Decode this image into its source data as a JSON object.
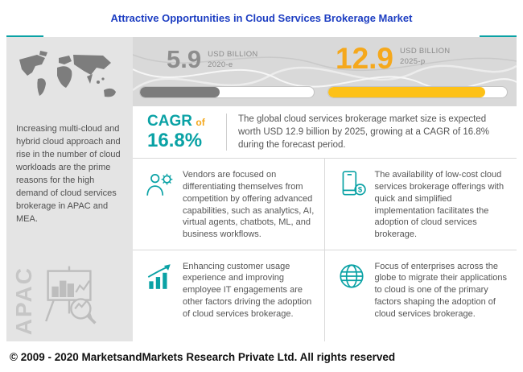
{
  "header": {
    "title": "Attractive Opportunities in Cloud Services Brokerage Market"
  },
  "sidebar": {
    "description": "Increasing multi-cloud and hybrid cloud approach and rise in the number of cloud workloads are the prime reasons for the high demand of cloud services brokerage in APAC and MEA.",
    "region_label": "APAC",
    "map_icon": "world-map",
    "bottom_icon": "analysis-easel-icon"
  },
  "stats": {
    "current": {
      "value": "5.9",
      "unit": "USD BILLION",
      "year": "2020-e",
      "bar_pct": 46
    },
    "projected": {
      "value": "12.9",
      "unit": "USD BILLION",
      "year": "2025-p",
      "bar_pct": 88
    }
  },
  "cagr": {
    "label": "CAGR",
    "of": "of",
    "value": "16.8%",
    "description": "The global cloud services brokerage market size is expected worth USD 12.9 billion by 2025, growing at a CAGR of 16.8% during the forecast period."
  },
  "insights": [
    {
      "icon": "person-gear-icon",
      "text": "Vendors are focused on differentiating themselves from competition by offering advanced capabilities, such as analytics, AI, virtual agents, chatbots, ML, and business workflows."
    },
    {
      "icon": "mobile-dollar-icon",
      "text": "The availability of low-cost cloud services brokerage offerings with quick and simplified implementation facilitates the adoption of cloud services brokerage."
    },
    {
      "icon": "growth-chart-icon",
      "text": "Enhancing customer usage experience and improving employee IT engagements are other factors driving the adoption of cloud services brokerage."
    },
    {
      "icon": "globe-icon",
      "text": "Focus of enterprises across the globe to migrate their applications to cloud is one of the primary factors shaping the adoption of cloud services brokerage."
    }
  ],
  "footer": {
    "copyright": "© 2009 - 2020 MarketsandMarkets Research Private Ltd. All rights reserved"
  },
  "colors": {
    "title_blue": "#1d3ec2",
    "accent_teal": "#0aa2a5",
    "accent_orange": "#f5a81c",
    "bar_yellow": "#fdc117",
    "number_gray": "#8d8d8d"
  },
  "chart_data": {
    "type": "bar",
    "title": "Attractive Opportunities in Cloud Services Brokerage Market",
    "categories": [
      "2020-e",
      "2025-p"
    ],
    "values": [
      5.9,
      12.9
    ],
    "units": "USD Billion",
    "cagr_percent": 16.8,
    "legend_position": "none",
    "grid": false
  }
}
